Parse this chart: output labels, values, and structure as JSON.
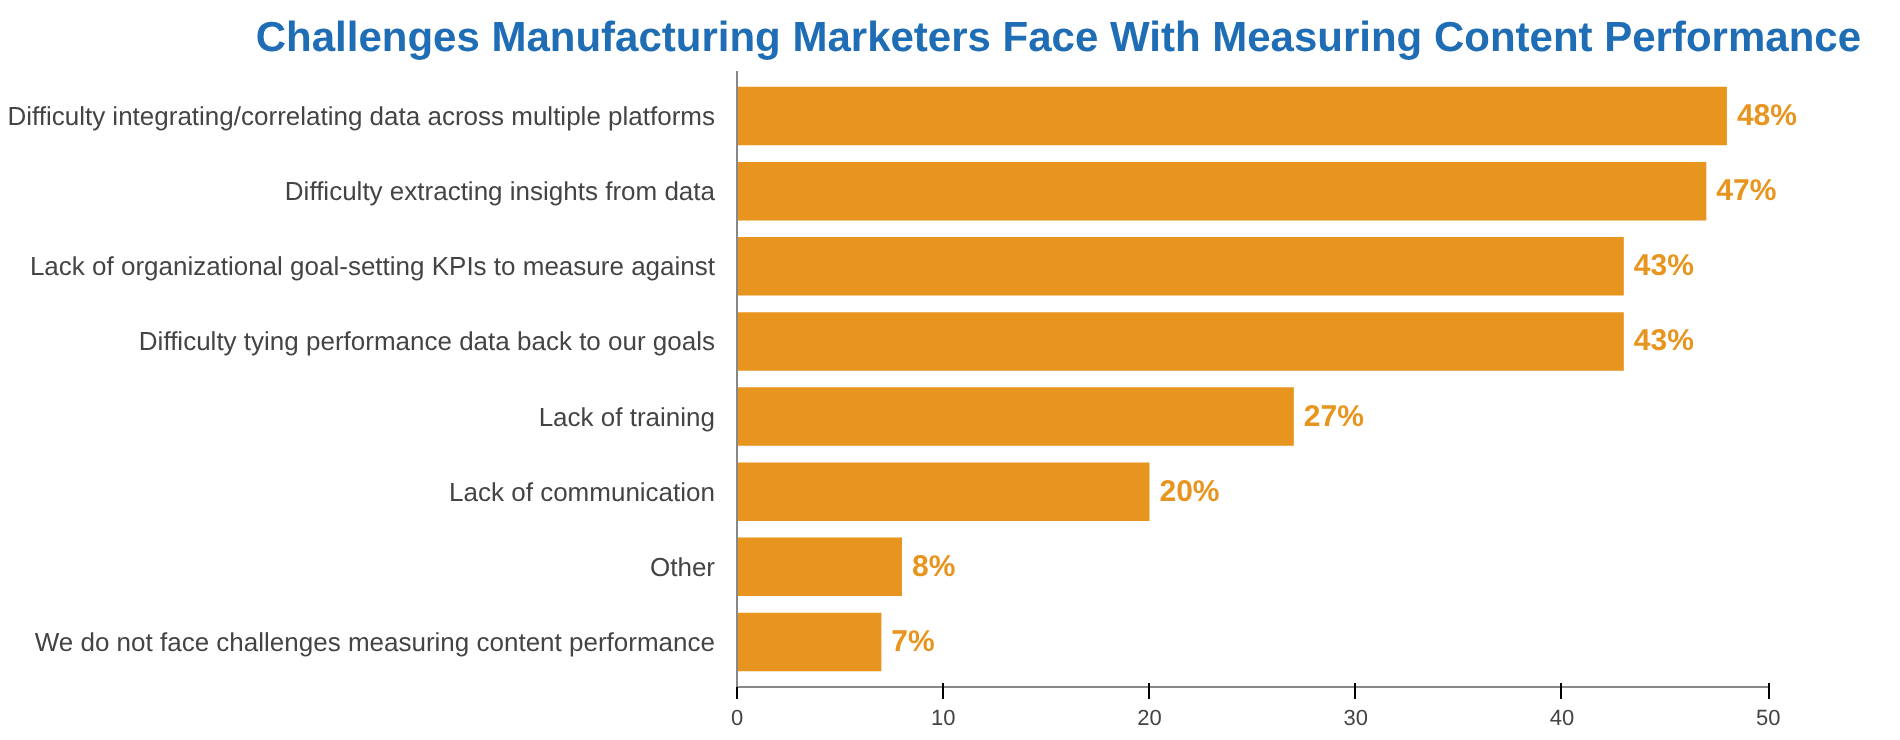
{
  "chart_data": {
    "type": "bar",
    "orientation": "horizontal",
    "title": "Challenges Manufacturing Marketers Face With Measuring Content Performance",
    "categories": [
      "Difficulty integrating/correlating data across multiple platforms",
      "Difficulty extracting insights from data",
      "Lack of organizational goal-setting KPIs to measure against",
      "Difficulty tying performance data back to our goals",
      "Lack of training",
      "Lack of communication",
      "Other",
      "We do not face challenges measuring content performance"
    ],
    "values": [
      48,
      47,
      43,
      43,
      27,
      20,
      8,
      7
    ],
    "value_labels": [
      "48%",
      "47%",
      "43%",
      "43%",
      "27%",
      "20%",
      "8%",
      "7%"
    ],
    "color": "#e8951f",
    "xlim": [
      0,
      50
    ],
    "xticks": [
      0,
      10,
      20,
      30,
      40,
      50
    ],
    "grid": false
  }
}
